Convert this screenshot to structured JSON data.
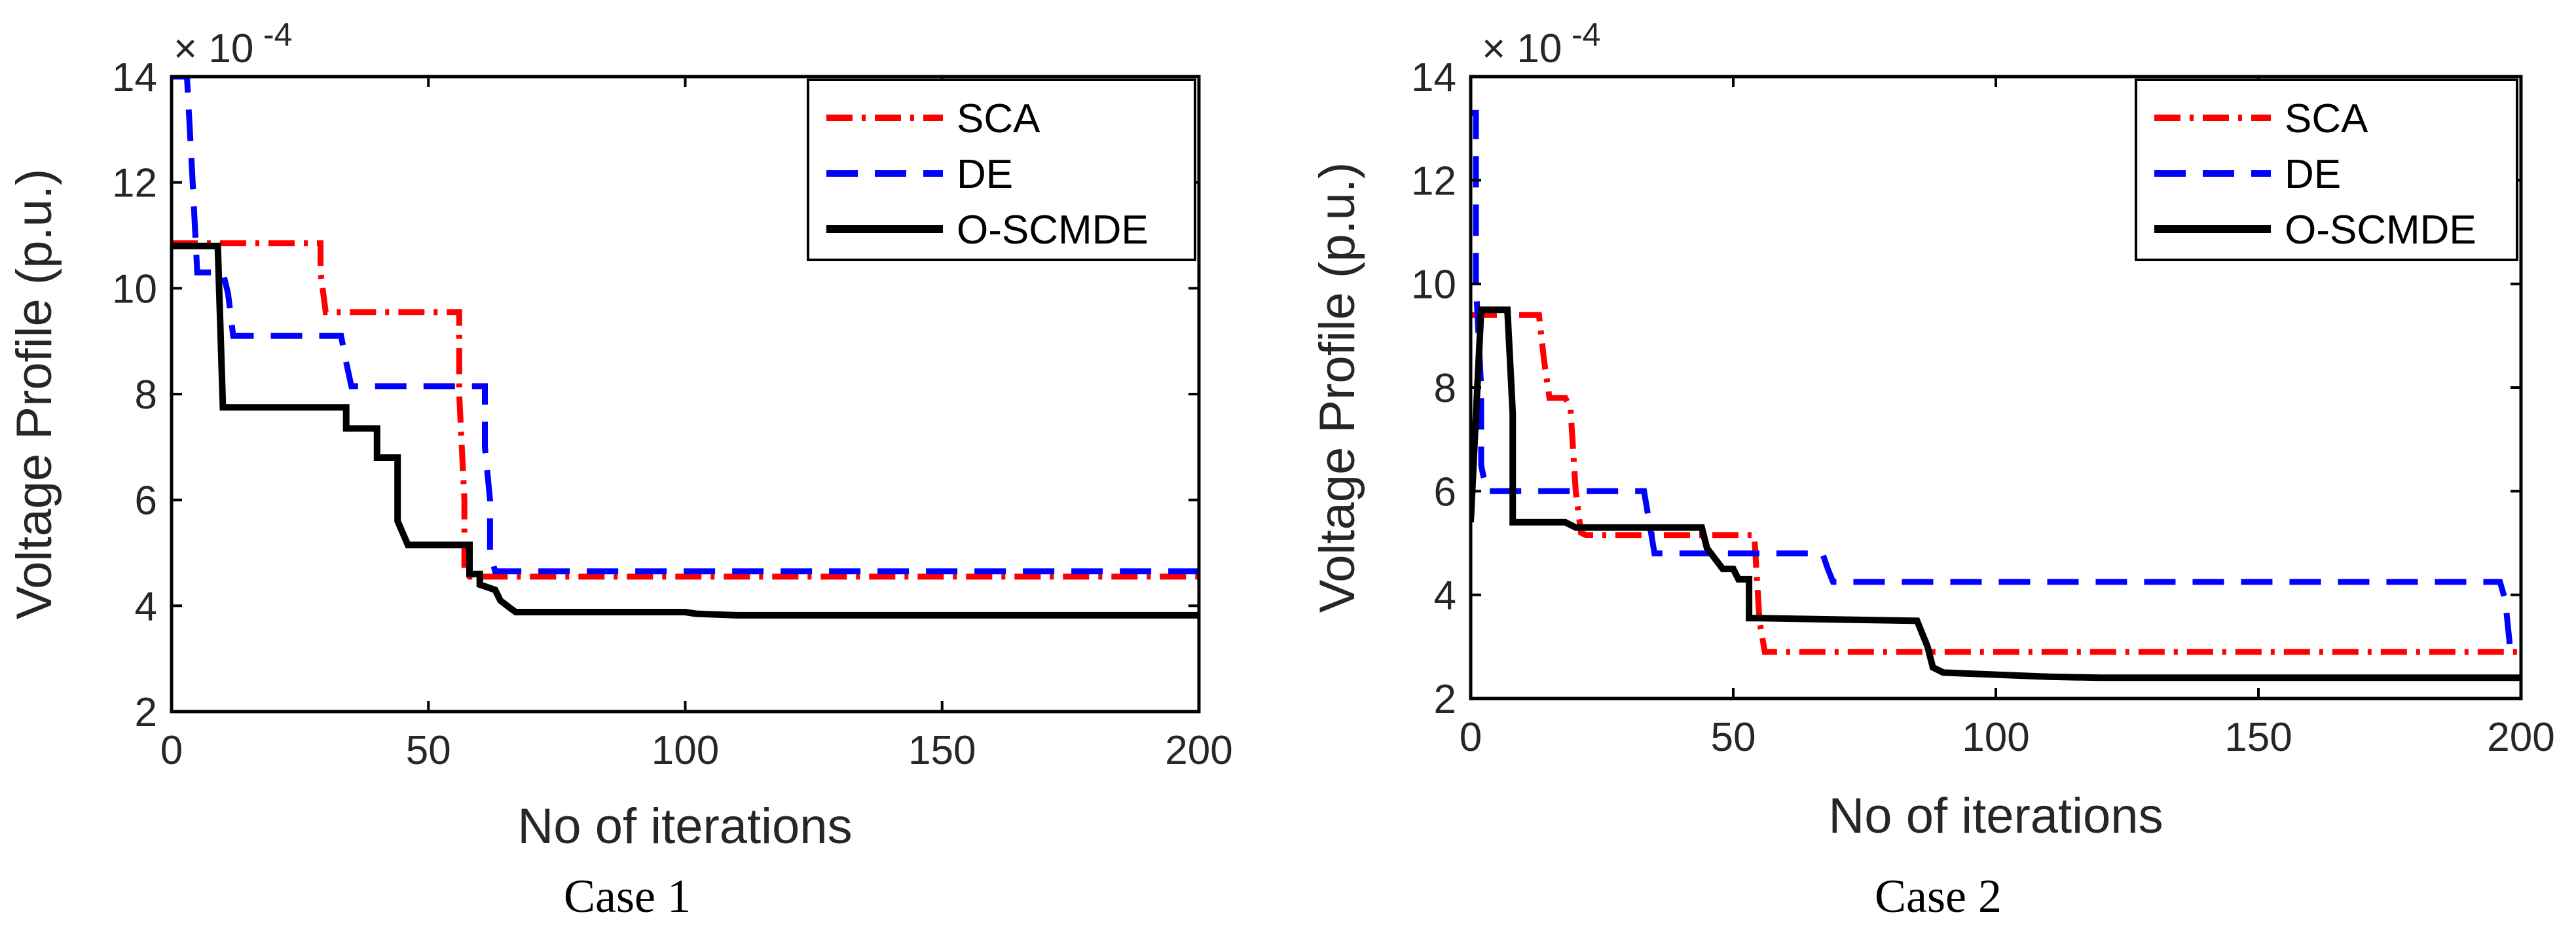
{
  "figure": {
    "captions": [
      "Case 1",
      "Case 2"
    ],
    "colors": {
      "sca": "#ff0000",
      "de": "#0000ff",
      "oscmde": "#000000",
      "axis": "#000000",
      "text": "#262626"
    }
  },
  "chart_data": [
    {
      "type": "line",
      "caption": "Case 1",
      "xlabel": "No of iterations",
      "ylabel": "Voltage Profile  (p.u.)",
      "xlim": [
        0,
        200
      ],
      "ylim": [
        2,
        14
      ],
      "xticks": [
        0,
        50,
        100,
        150,
        200
      ],
      "yticks": [
        2,
        4,
        6,
        8,
        10,
        12,
        14
      ],
      "ytick_labels": [
        "2",
        "4",
        "6",
        "8",
        "10",
        "12",
        "14"
      ],
      "xtick_labels": [
        "0",
        "50",
        "100",
        "150",
        "200"
      ],
      "y_multiplier_base": "× 10",
      "y_multiplier_exp": "-4",
      "legend_position": "top-right",
      "series": [
        {
          "name": "SCA",
          "style": "dashdot",
          "color": "#ff0000",
          "x": [
            0,
            29,
            29,
            30,
            56,
            56,
            57,
            57,
            58,
            200
          ],
          "y": [
            10.85,
            10.85,
            10.3,
            9.55,
            9.55,
            8.0,
            6.0,
            4.7,
            4.55,
            4.55
          ]
        },
        {
          "name": "DE",
          "style": "dashed",
          "color": "#0000ff",
          "x": [
            0,
            3,
            4,
            5,
            10,
            11,
            12,
            33,
            34,
            35,
            61,
            61,
            62,
            62,
            63,
            200
          ],
          "y": [
            14.0,
            14.0,
            12.2,
            10.3,
            10.3,
            9.9,
            9.1,
            9.1,
            8.6,
            8.15,
            8.15,
            7.0,
            6.0,
            5.0,
            4.65,
            4.65
          ]
        },
        {
          "name": "O-SCMDE",
          "style": "solid",
          "color": "#000000",
          "x": [
            0,
            9,
            10,
            34,
            34,
            40,
            40,
            44,
            44,
            46,
            58,
            58,
            60,
            60,
            63,
            64,
            66,
            67,
            100,
            102,
            110,
            200
          ],
          "y": [
            10.8,
            10.8,
            7.75,
            7.75,
            7.35,
            7.35,
            6.8,
            6.8,
            5.6,
            5.15,
            5.15,
            4.6,
            4.6,
            4.4,
            4.3,
            4.1,
            3.95,
            3.88,
            3.88,
            3.85,
            3.82,
            3.82
          ]
        }
      ]
    },
    {
      "type": "line",
      "caption": "Case 2",
      "xlabel": "No of iterations",
      "ylabel": "Voltage Profile  (p.u.)",
      "xlim": [
        0,
        200
      ],
      "ylim": [
        2,
        14
      ],
      "xticks": [
        0,
        50,
        100,
        150,
        200
      ],
      "yticks": [
        2,
        4,
        6,
        8,
        10,
        12,
        14
      ],
      "ytick_labels": [
        "2",
        "4",
        "6",
        "8",
        "10",
        "12",
        "14"
      ],
      "xtick_labels": [
        "0",
        "50",
        "100",
        "150",
        "200"
      ],
      "y_multiplier_base": "× 10",
      "y_multiplier_exp": "-4",
      "legend_position": "top-right",
      "series": [
        {
          "name": "SCA",
          "style": "dashdot",
          "color": "#ff0000",
          "x": [
            0,
            13,
            14,
            15,
            18,
            19,
            20,
            21,
            22,
            54,
            55,
            56,
            200
          ],
          "y": [
            9.4,
            9.4,
            8.5,
            7.8,
            7.8,
            7.6,
            6.0,
            5.2,
            5.15,
            5.15,
            3.5,
            2.9,
            2.9
          ]
        },
        {
          "name": "DE",
          "style": "dashed",
          "color": "#0000ff",
          "x": [
            0,
            1,
            1,
            2,
            2,
            3,
            33,
            34,
            35,
            67,
            68,
            69,
            196,
            197,
            198,
            200
          ],
          "y": [
            13.3,
            13.3,
            10.0,
            8.0,
            6.5,
            6.0,
            6.0,
            5.4,
            4.8,
            4.8,
            4.5,
            4.25,
            4.25,
            3.9,
            2.9,
            2.9
          ]
        },
        {
          "name": "O-SCMDE",
          "style": "solid",
          "color": "#000000",
          "x": [
            0,
            2,
            7,
            8,
            8,
            18,
            20,
            44,
            45,
            48,
            50,
            51,
            53,
            53,
            55,
            85,
            87,
            88,
            90,
            95,
            110,
            120,
            200
          ],
          "y": [
            5.4,
            9.5,
            9.5,
            7.5,
            5.4,
            5.4,
            5.3,
            5.3,
            4.9,
            4.5,
            4.5,
            4.3,
            4.3,
            3.55,
            3.55,
            3.5,
            3.0,
            2.6,
            2.5,
            2.48,
            2.42,
            2.4,
            2.4
          ]
        }
      ]
    }
  ]
}
